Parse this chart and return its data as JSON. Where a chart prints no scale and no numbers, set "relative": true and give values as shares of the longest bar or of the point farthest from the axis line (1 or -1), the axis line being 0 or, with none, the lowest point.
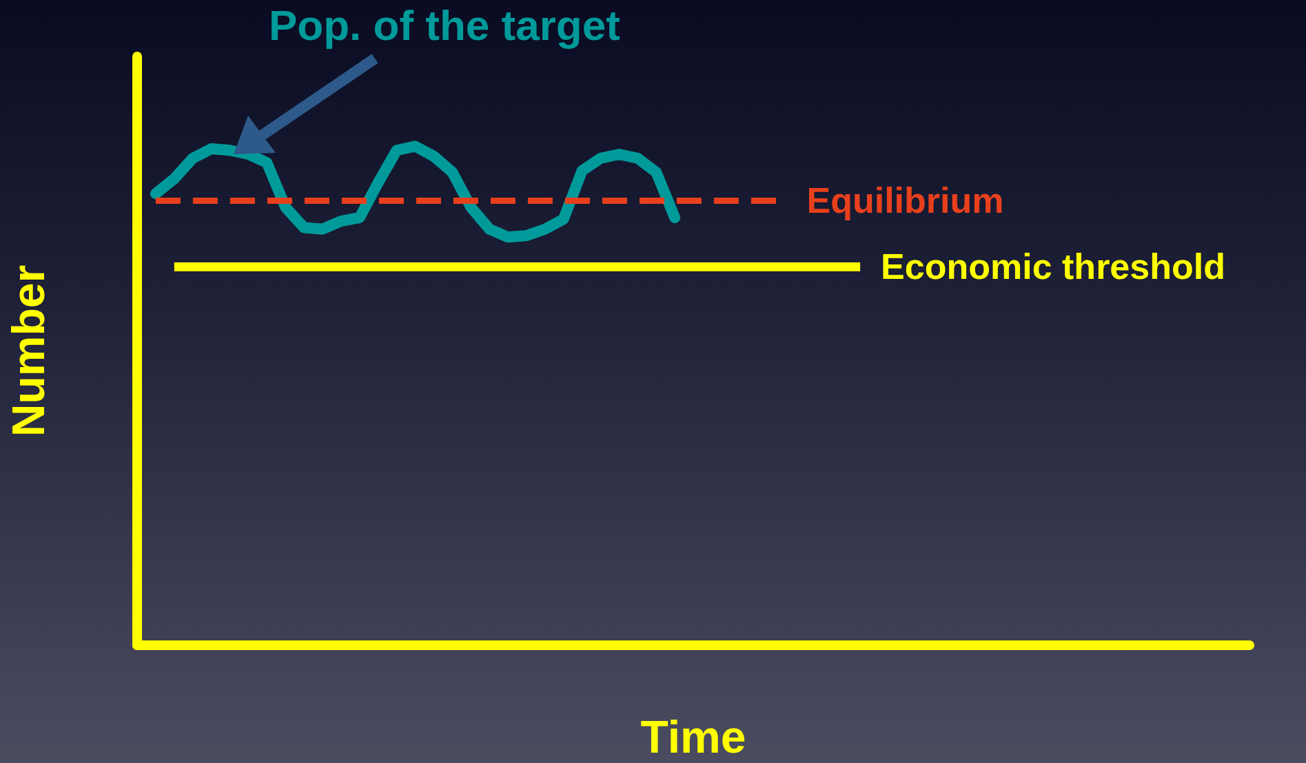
{
  "chart_data": {
    "type": "line",
    "relative": true,
    "title": "Pop. of the target",
    "xlabel": "Time",
    "ylabel": "Number",
    "categories": [
      null,
      null,
      null,
      null,
      null,
      null,
      null,
      null,
      null,
      null,
      null,
      null,
      null,
      null,
      null,
      null,
      null,
      null,
      null,
      null,
      null,
      null,
      null,
      null,
      null,
      null,
      null,
      null,
      null,
      null,
      null,
      null,
      null,
      null,
      null,
      null,
      null,
      null,
      null,
      null,
      null,
      null,
      null,
      null,
      null,
      null,
      null,
      null,
      null,
      null,
      null,
      null,
      null,
      null,
      null,
      null,
      null,
      null,
      null,
      null,
      null
    ],
    "series": [
      {
        "color": "#009a9a",
        "values": [
          null,
          0.905,
          0.935,
          0.976,
          0.995,
          0.992,
          0.984,
          0.967,
          0.878,
          0.837,
          0.834,
          0.85,
          0.857,
          0.927,
          0.992,
          1,
          0.98,
          0.948,
          0.878,
          0.834,
          0.818,
          0.821,
          0.834,
          0.854,
          0.951,
          0.976,
          0.984,
          0.976,
          0.948,
          0.857,
          null,
          null,
          null,
          null,
          null,
          null,
          null,
          null,
          null,
          null,
          null,
          null,
          null,
          null,
          null,
          null,
          null,
          null,
          null,
          null,
          null,
          null,
          null,
          null,
          null,
          null,
          null,
          null,
          null,
          null,
          null
        ]
      }
    ],
    "ref_lines": [
      {
        "axis": "y",
        "value": 0.891,
        "label": "Equilibrium",
        "color": "#e8401c",
        "line_style": "dashed"
      },
      {
        "axis": "y",
        "value": 0.759,
        "label": "Economic threshold",
        "color": "#ffff00",
        "line_style": "solid"
      }
    ],
    "line_style": "solid",
    "grid": false
  }
}
